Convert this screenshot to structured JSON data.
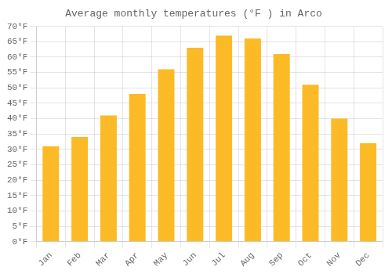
{
  "chart_data": {
    "type": "bar",
    "title": "Average monthly temperatures (°F ) in Arco",
    "categories": [
      "Jan",
      "Feb",
      "Mar",
      "Apr",
      "May",
      "Jun",
      "Jul",
      "Aug",
      "Sep",
      "Oct",
      "Nov",
      "Dec"
    ],
    "values": [
      31,
      34,
      41,
      48,
      56,
      63,
      67,
      66,
      61,
      51,
      40,
      32
    ],
    "color": "#FBBA26",
    "ylim": [
      0,
      70
    ],
    "yticks": [
      {
        "value": 0,
        "label": "0°F"
      },
      {
        "value": 5,
        "label": "5°F"
      },
      {
        "value": 10,
        "label": "10°F"
      },
      {
        "value": 15,
        "label": "15°F"
      },
      {
        "value": 20,
        "label": "20°F"
      },
      {
        "value": 25,
        "label": "25°F"
      },
      {
        "value": 30,
        "label": "30°F"
      },
      {
        "value": 35,
        "label": "35°F"
      },
      {
        "value": 40,
        "label": "40°F"
      },
      {
        "value": 45,
        "label": "45°F"
      },
      {
        "value": 50,
        "label": "50°F"
      },
      {
        "value": 55,
        "label": "55°F"
      },
      {
        "value": 60,
        "label": "60°F"
      },
      {
        "value": 65,
        "label": "65°F"
      },
      {
        "value": 70,
        "label": "70°F"
      }
    ],
    "grid": true
  }
}
